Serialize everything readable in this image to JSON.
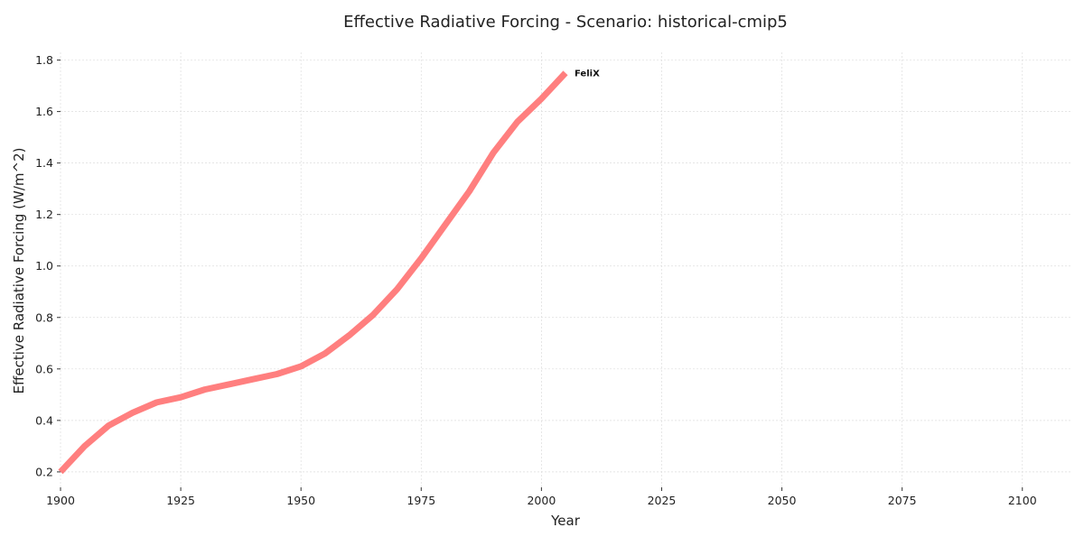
{
  "chart_data": {
    "type": "line",
    "title": "Effective Radiative Forcing - Scenario: historical-cmip5",
    "xlabel": "Year",
    "ylabel": "Effective Radiative Forcing (W/m^2)",
    "xlim": [
      1900,
      2110
    ],
    "ylim": [
      0.14,
      1.83
    ],
    "xticks": [
      1900,
      1925,
      1950,
      1975,
      2000,
      2025,
      2050,
      2075,
      2100
    ],
    "yticks": [
      0.2,
      0.4,
      0.6,
      0.8,
      1.0,
      1.2,
      1.4,
      1.6,
      1.8
    ],
    "ytick_labels": [
      "0.2",
      "0.4",
      "0.6",
      "0.8",
      "1.0",
      "1.2",
      "1.4",
      "1.6",
      "1.8"
    ],
    "grid": true,
    "series": [
      {
        "name": "FeliX",
        "color": "#ff7f7f",
        "x": [
          1900,
          1905,
          1910,
          1915,
          1920,
          1925,
          1930,
          1935,
          1940,
          1945,
          1950,
          1955,
          1960,
          1965,
          1970,
          1975,
          1980,
          1985,
          1990,
          1995,
          2000,
          2005
        ],
        "y": [
          0.2,
          0.3,
          0.38,
          0.43,
          0.47,
          0.49,
          0.52,
          0.54,
          0.56,
          0.58,
          0.61,
          0.66,
          0.73,
          0.81,
          0.91,
          1.03,
          1.16,
          1.29,
          1.44,
          1.56,
          1.65,
          1.75
        ]
      }
    ]
  }
}
